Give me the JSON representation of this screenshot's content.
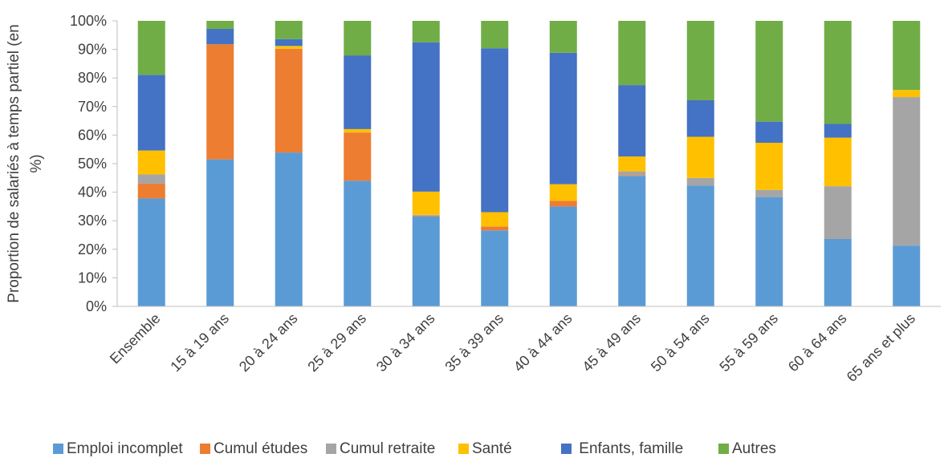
{
  "chart_data": {
    "type": "bar",
    "stacked": true,
    "ylabel": "Proportion de salariés à temps partiel (en %)",
    "ylabel_lines": [
      "Proportion de salariés à temps partiel (en",
      "%)"
    ],
    "ylim": [
      0,
      100
    ],
    "yticks": [
      "0%",
      "10%",
      "20%",
      "30%",
      "40%",
      "50%",
      "60%",
      "70%",
      "80%",
      "90%",
      "100%"
    ],
    "grid": false,
    "legend_position": "bottom",
    "categories": [
      "Ensemble",
      "15 à 19 ans",
      "20 à 24 ans",
      "25 à 29 ans",
      "30 à 34 ans",
      "35 à 39 ans",
      "40 à 44 ans",
      "45 à 49 ans",
      "50 à 54 ans",
      "55 à 59 ans",
      "60 à 64 ans",
      "65 ans et plus"
    ],
    "series": [
      {
        "name": "Emploi incomplet",
        "color": "#5B9BD5",
        "values": [
          37.8,
          51.5,
          53.9,
          44.0,
          31.5,
          26.6,
          35.0,
          45.7,
          42.3,
          38.3,
          23.6,
          21.3
        ]
      },
      {
        "name": "Cumul études",
        "color": "#ED7D31",
        "values": [
          5.2,
          40.3,
          36.3,
          16.9,
          0.3,
          1.4,
          2.0,
          0.3,
          0.0,
          0.0,
          0.0,
          0.0
        ]
      },
      {
        "name": "Cumul retraite",
        "color": "#A5A5A5",
        "values": [
          3.2,
          0.0,
          0.0,
          0.0,
          0.3,
          0.0,
          0.0,
          1.3,
          2.7,
          2.5,
          18.5,
          52.0
        ]
      },
      {
        "name": "Santé",
        "color": "#FFC000",
        "values": [
          8.4,
          0.0,
          1.0,
          1.2,
          8.1,
          5.0,
          5.8,
          5.2,
          14.4,
          16.5,
          17.0,
          2.5
        ]
      },
      {
        "name": " Enfants, famille",
        "color": "#4472C4",
        "values": [
          26.5,
          5.4,
          2.4,
          25.8,
          52.3,
          57.4,
          46.0,
          25.0,
          12.8,
          7.4,
          4.8,
          0.0
        ]
      },
      {
        "name": "Autres",
        "color": "#70AD47",
        "values": [
          18.9,
          2.8,
          6.4,
          12.1,
          7.5,
          9.6,
          11.2,
          22.5,
          27.8,
          35.3,
          36.1,
          24.2
        ]
      }
    ]
  }
}
